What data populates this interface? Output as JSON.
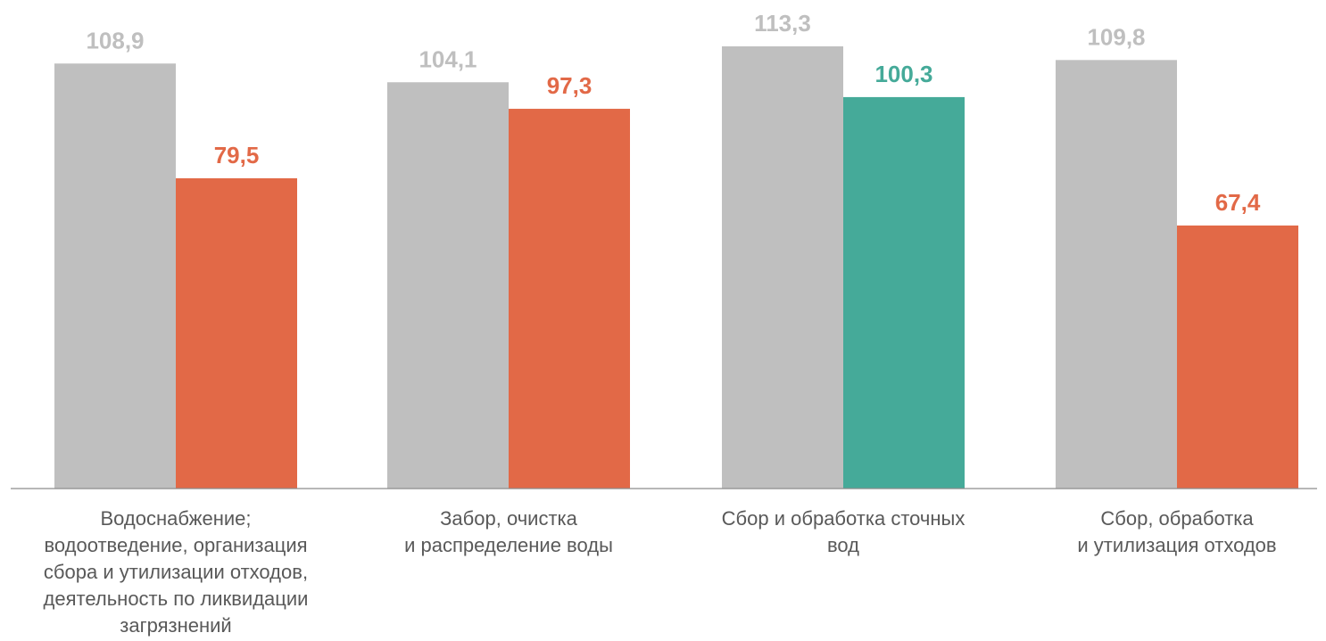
{
  "chart_data": {
    "type": "bar",
    "categories": [
      [
        "Водоснабжение;",
        "водоотведение, организация",
        "сбора и утилизации отходов,",
        "деятельность по ликвидации",
        "загрязнений"
      ],
      [
        "Забор, очистка",
        "и распределение воды"
      ],
      [
        "Сбор и обработка сточных",
        "вод"
      ],
      [
        "Сбор, обработка",
        "и утилизация отходов"
      ]
    ],
    "series": [
      {
        "values": [
          108.9,
          104.1,
          113.3,
          109.8
        ],
        "labels": [
          "108,9",
          "104,1",
          "113,3",
          "109,8"
        ],
        "colors": [
          "#bfbfbf",
          "#bfbfbf",
          "#bfbfbf",
          "#bfbfbf"
        ]
      },
      {
        "values": [
          79.5,
          97.3,
          100.3,
          67.4
        ],
        "labels": [
          "79,5",
          "97,3",
          "100,3",
          "67,4"
        ],
        "colors": [
          "#e26947",
          "#e26947",
          "#45aa99",
          "#e26947"
        ]
      }
    ],
    "label_color_grey": "#bfbfbf",
    "axis_color": "#8c8c8c",
    "ylim": [
      0,
      113.3
    ],
    "grid": false,
    "legend": "none"
  }
}
